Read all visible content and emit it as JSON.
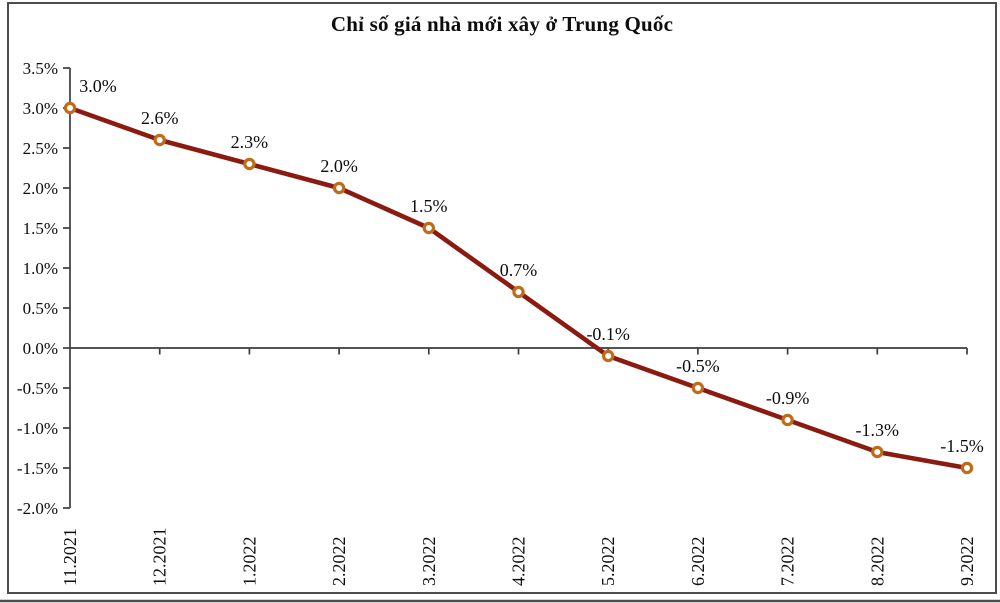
{
  "chart_data": {
    "type": "line",
    "title": "Chỉ số giá nhà mới xây ở Trung Quốc",
    "categories": [
      "11.2021",
      "12.2021",
      "1.2022",
      "2.2022",
      "3.2022",
      "4.2022",
      "5.2022",
      "6.2022",
      "7.2022",
      "8.2022",
      "9.2022"
    ],
    "values": [
      3.0,
      2.6,
      2.3,
      2.0,
      1.5,
      0.7,
      -0.1,
      -0.5,
      -0.9,
      -1.3,
      -1.5
    ],
    "data_labels": [
      "3.0%",
      "2.6%",
      "2.3%",
      "2.0%",
      "1.5%",
      "0.7%",
      "-0.1%",
      "-0.5%",
      "-0.9%",
      "-1.3%",
      "-1.5%"
    ],
    "y_tick_labels": [
      "3.5%",
      "3.0%",
      "2.5%",
      "2.0%",
      "1.5%",
      "1.0%",
      "0.5%",
      "0.0%",
      "-0.5%",
      "-1.0%",
      "-1.5%",
      "-2.0%"
    ],
    "ylim": [
      -2.0,
      3.5
    ],
    "y_step": 0.5,
    "xlabel": "",
    "ylabel": "",
    "legend": "none",
    "grid": false,
    "colors": {
      "line": "#8b1a10",
      "marker_ring": "#bf6c1a",
      "marker_fill": "#ffffff",
      "axis": "#3d3d3d",
      "text": "#0d0d0d",
      "frame": "#4d4d4d"
    }
  }
}
